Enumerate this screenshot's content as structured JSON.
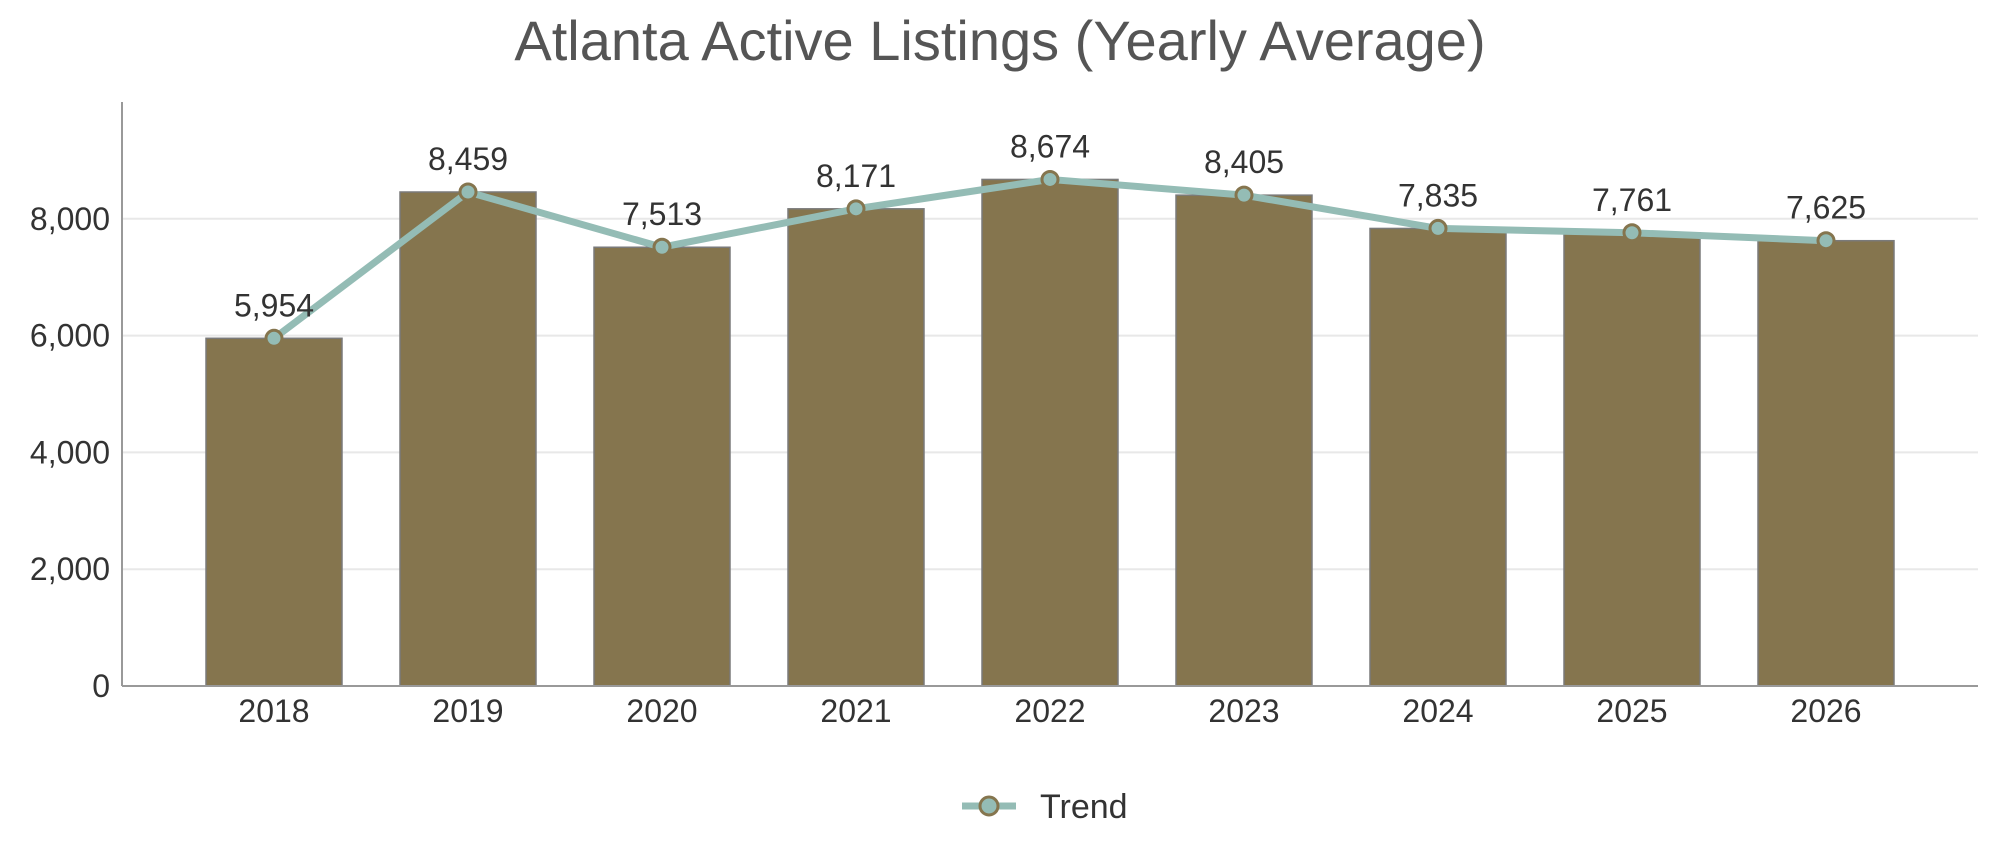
{
  "chart_data": {
    "type": "bar",
    "title": "Atlanta Active Listings (Yearly Average)",
    "xlabel": "",
    "ylabel": "",
    "categories": [
      "2018",
      "2019",
      "2020",
      "2021",
      "2022",
      "2023",
      "2024",
      "2025",
      "2026"
    ],
    "values": [
      5954,
      8459,
      7513,
      8171,
      8674,
      8405,
      7835,
      7761,
      7625
    ],
    "data_labels": [
      "5,954",
      "8,459",
      "7,513",
      "8,171",
      "8,674",
      "8,405",
      "7,835",
      "7,761",
      "7,625"
    ],
    "trend_series": {
      "name": "Trend",
      "type": "line",
      "values": [
        5954,
        8459,
        7513,
        8171,
        8674,
        8405,
        7835,
        7761,
        7625
      ]
    },
    "ylim": [
      0,
      10000
    ],
    "yticks": [
      0,
      2000,
      4000,
      6000,
      8000
    ],
    "ytick_labels": [
      "0",
      "2,000",
      "4,000",
      "6,000",
      "8,000"
    ],
    "grid": true,
    "legend_position": "bottom-center",
    "colors": {
      "bar": "#85754E",
      "bar_edge": "#7a7a7a",
      "trend_line": "#94BCB5",
      "marker_fill": "#94BCB5",
      "marker_edge": "#85754E",
      "grid": "#e8e8e8",
      "axis": "#999999"
    }
  }
}
